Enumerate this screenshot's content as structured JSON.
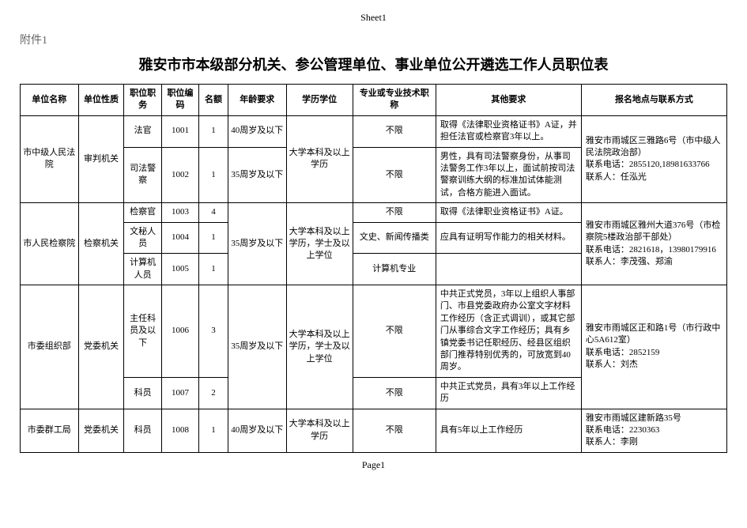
{
  "sheet_label": "Sheet1",
  "attachment_label": "附件1",
  "main_title": "雅安市市本级部分机关、参公管理单位、事业单位公开遴选工作人员职位表",
  "page_label": "Page1",
  "headers": {
    "unit_name": "单位名称",
    "unit_type": "单位性质",
    "position": "职位职务",
    "code": "职位编码",
    "count": "名额",
    "age": "年龄要求",
    "education": "学历学位",
    "major": "专业或专业技术职称",
    "other": "其他要求",
    "contact": "报名地点与联系方式"
  },
  "rows": {
    "r1": {
      "unit_name": "市中级人民法院",
      "unit_type": "审判机关",
      "position": "法官",
      "code": "1001",
      "count": "1",
      "age": "40周岁及以下",
      "education": "大学本科及以上学历",
      "major": "不限",
      "other": "取得《法律职业资格证书》A证，并担任法官或检察官3年以上。",
      "contact": "雅安市雨城区三雅路6号（市中级人民法院政治部）\n联系电话：2855120,18981633766\n联系人：任泓光"
    },
    "r2": {
      "position": "司法警察",
      "code": "1002",
      "count": "1",
      "age": "35周岁及以下",
      "major": "不限",
      "other": "男性，具有司法警察身份，从事司法警务工作3年以上，面试前按司法警察训练大纲的标准加试体能测试，合格方能进入面试。"
    },
    "r3": {
      "unit_name": "市人民检察院",
      "unit_type": "检察机关",
      "position": "检察官",
      "code": "1003",
      "count": "4",
      "age": "35周岁及以下",
      "education": "大学本科及以上学历，学士及以上学位",
      "major": "不限",
      "other": "取得《法律职业资格证书》A证。",
      "contact": "雅安市雨城区雅州大道376号（市检察院5楼政治部干部处）\n联系电话：2821618，13980179916\n联系人：李茂强、郑渝"
    },
    "r4": {
      "position": "文秘人员",
      "code": "1004",
      "count": "1",
      "major": "文史、新闻传播类",
      "other": "应具有证明写作能力的相关材料。"
    },
    "r5": {
      "position": "计算机人员",
      "code": "1005",
      "count": "1",
      "major": "计算机专业"
    },
    "r6": {
      "unit_name": "市委组织部",
      "unit_type": "党委机关",
      "position": "主任科员及以下",
      "code": "1006",
      "count": "3",
      "age": "35周岁及以下",
      "education": "大学本科及以上学历，学士及以上学位",
      "major": "不限",
      "other": "中共正式党员，3年以上组织人事部门、市县党委政府办公室文字材料工作经历（含正式调训），或其它部门从事综合文字工作经历；具有乡镇党委书记任职经历、经县区组织部门推荐特别优秀的，可放宽到40周岁。",
      "contact": "雅安市雨城区正和路1号（市行政中心5A612室）\n联系电话：2852159\n联系人：刘杰"
    },
    "r7": {
      "position": "科员",
      "code": "1007",
      "count": "2",
      "major": "不限",
      "other": "中共正式党员，具有3年以上工作经历"
    },
    "r8": {
      "unit_name": "市委群工局",
      "unit_type": "党委机关",
      "position": "科员",
      "code": "1008",
      "count": "1",
      "age": "40周岁及以下",
      "education": "大学本科及以上学历",
      "major": "不限",
      "other": "具有5年以上工作经历",
      "contact": "雅安市雨城区建新路35号\n联系电话：2230363\n联系人：李刚"
    }
  }
}
